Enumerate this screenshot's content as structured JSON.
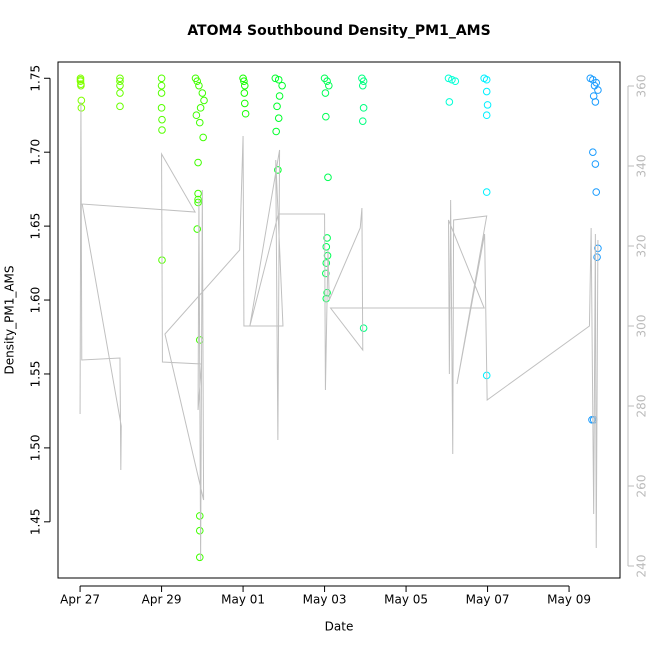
{
  "chart_data": {
    "type": "scatter",
    "title": "ATOM4 Southbound Density_PM1_AMS",
    "xlabel": "Date",
    "ylabel": "Density_PM1_AMS",
    "xlim": [
      "04-26 11:00",
      "05-10 06:00"
    ],
    "xticks": [
      {
        "value": "04-27",
        "label": "Apr 27"
      },
      {
        "value": "04-29",
        "label": "Apr 29"
      },
      {
        "value": "05-01",
        "label": "May 01"
      },
      {
        "value": "05-03",
        "label": "May 03"
      },
      {
        "value": "05-05",
        "label": "May 05"
      },
      {
        "value": "05-07",
        "label": "May 07"
      },
      {
        "value": "05-09",
        "label": "May 09"
      }
    ],
    "ylim": [
      1.412,
      1.761
    ],
    "yticks": [
      1.45,
      {
        "value": 1.5,
        "label": "1.50"
      },
      1.55,
      {
        "value": 1.6,
        "label": "1.60"
      },
      1.65,
      {
        "value": 1.7,
        "label": "1.70"
      },
      1.75
    ],
    "y2lim": [
      237,
      366
    ],
    "y2ticks": [
      240,
      260,
      280,
      300,
      320,
      340,
      360
    ],
    "y2tick_color": "#bbbbbb",
    "grid": false,
    "series": [
      {
        "type": "scatter",
        "x": [
          "04-27 00:15",
          "04-27 00:15",
          "04-27 00:15",
          "04-27 00:30",
          "04-27 00:30",
          "04-27 00:45",
          "04-27 00:45",
          "04-27 23:30",
          "04-27 23:30",
          "04-27 23:30",
          "04-27 23:30",
          "04-27 23:30",
          "04-29 00:00",
          "04-29 00:00",
          "04-29 00:00",
          "04-29 00:00",
          "04-29 00:15",
          "04-29 00:15",
          "04-29 00:15",
          "04-29 20:00",
          "04-29 21:00",
          "04-29 22:00",
          "04-30 00:00",
          "04-30 01:00",
          "04-29 23:00",
          "04-29 20:30",
          "04-29 22:30",
          "04-30 00:30",
          "04-29 21:30",
          "04-29 21:30",
          "04-29 21:30",
          "04-29 21:30",
          "04-29 21:00",
          "04-29 22:30",
          "04-29 22:30",
          "04-29 22:30",
          "04-29 22:30",
          "05-01 00:00",
          "05-01 00:30",
          "05-01 01:00",
          "05-01 00:45",
          "05-01 01:00",
          "05-01 01:30",
          "05-01 19:00",
          "05-01 21:00",
          "05-01 23:00",
          "05-01 21:30",
          "05-01 20:00",
          "05-01 21:00",
          "05-01 19:30",
          "05-01 20:30",
          "05-03 00:00",
          "05-03 01:30",
          "05-03 02:30",
          "05-03 00:30",
          "05-03 00:45",
          "05-03 02:00",
          "05-03 01:30",
          "05-03 01:00",
          "05-03 01:45",
          "05-03 01:00",
          "05-03 00:45",
          "05-03 01:30",
          "05-03 01:00",
          "05-03 22:00",
          "05-03 23:00",
          "05-03 22:30",
          "05-03 23:00",
          "05-03 22:30",
          "05-03 23:00",
          "05-06 01:00",
          "05-06 03:00",
          "05-06 05:00",
          "05-06 01:30",
          "05-06 22:00",
          "05-06 23:30",
          "05-06 23:30",
          "05-07 00:00",
          "05-06 23:30",
          "05-06 23:30",
          "05-06 23:30",
          "05-09 12:30",
          "05-09 14:00",
          "05-09 16:00",
          "05-09 15:00",
          "05-09 17:00",
          "05-09 14:30",
          "05-09 15:30",
          "05-09 14:00",
          "05-09 15:30",
          "05-09 16:00",
          "05-09 17:00",
          "05-09 16:30",
          "05-09 13:30",
          "05-09 14:30"
        ],
        "values": [
          1.75,
          1.749,
          1.748,
          1.746,
          1.745,
          1.735,
          1.73,
          1.75,
          1.748,
          1.745,
          1.74,
          1.731,
          1.75,
          1.745,
          1.74,
          1.73,
          1.722,
          1.715,
          1.627,
          1.75,
          1.748,
          1.745,
          1.74,
          1.735,
          1.73,
          1.725,
          1.72,
          1.71,
          1.693,
          1.672,
          1.668,
          1.666,
          1.648,
          1.573,
          1.454,
          1.444,
          1.426,
          1.75,
          1.748,
          1.745,
          1.74,
          1.733,
          1.726,
          1.75,
          1.749,
          1.745,
          1.738,
          1.731,
          1.723,
          1.714,
          1.688,
          1.75,
          1.748,
          1.745,
          1.74,
          1.724,
          1.683,
          1.642,
          1.636,
          1.63,
          1.625,
          1.618,
          1.605,
          1.601,
          1.75,
          1.748,
          1.745,
          1.73,
          1.721,
          1.581,
          1.75,
          1.749,
          1.748,
          1.734,
          1.75,
          1.749,
          1.741,
          1.732,
          1.725,
          1.673,
          1.549,
          1.75,
          1.749,
          1.747,
          1.745,
          1.742,
          1.738,
          1.734,
          1.7,
          1.692,
          1.673,
          1.635,
          1.629,
          1.519,
          1.519
        ],
        "colors": [
          "#80ff00",
          "#80ff00",
          "#80ff00",
          "#80ff00",
          "#80ff00",
          "#80ff00",
          "#80ff00",
          "#6aff00",
          "#6aff00",
          "#6aff00",
          "#6aff00",
          "#6aff00",
          "#55ff00",
          "#55ff00",
          "#55ff00",
          "#55ff00",
          "#55ff00",
          "#55ff00",
          "#55ff00",
          "#40ff00",
          "#40ff00",
          "#40ff00",
          "#40ff00",
          "#40ff00",
          "#40ff00",
          "#40ff00",
          "#40ff00",
          "#40ff00",
          "#40ff00",
          "#40ff00",
          "#40ff00",
          "#40ff00",
          "#40ff00",
          "#40ff00",
          "#40ff00",
          "#40ff00",
          "#40ff00",
          "#15ff00",
          "#15ff00",
          "#15ff00",
          "#15ff00",
          "#15ff00",
          "#15ff00",
          "#00ff2b",
          "#00ff2b",
          "#00ff2b",
          "#00ff2b",
          "#00ff2b",
          "#00ff2b",
          "#00ff2b",
          "#00ff2b",
          "#00ff55",
          "#00ff55",
          "#00ff55",
          "#00ff55",
          "#00ff55",
          "#00ff55",
          "#00ff55",
          "#00ff55",
          "#00ff55",
          "#00ff55",
          "#00ff55",
          "#00ff55",
          "#00ff55",
          "#00ff80",
          "#00ff80",
          "#00ff80",
          "#00ff80",
          "#00ff80",
          "#00ff80",
          "#00ffd5",
          "#00ffd5",
          "#00ffd5",
          "#00ffd5",
          "#00f0ff",
          "#00f0ff",
          "#00f0ff",
          "#00f0ff",
          "#00f0ff",
          "#00f0ff",
          "#00f0ff",
          "#1a9cff",
          "#1a9cff",
          "#1a9cff",
          "#1a9cff",
          "#1a9cff",
          "#1a9cff",
          "#1a9cff",
          "#1a9cff",
          "#1a9cff",
          "#1a9cff",
          "#1a9cff",
          "#1a9cff",
          "#1a9cff",
          "#1a9cff"
        ]
      },
      {
        "type": "line",
        "axis": "y2",
        "color": "#c0c0c0",
        "x": [
          "04-27 00:00",
          "04-27 00:30",
          "04-27 01:00",
          "04-27 23:30",
          "04-28 00:00",
          "04-28 00:15",
          "04-27 01:15",
          "04-29 19:45",
          "04-29 00:00",
          "04-29 00:30",
          "04-29 23:30",
          "04-29 21:30",
          "04-29 22:00",
          "04-29 23:00",
          "04-30 00:00",
          "04-30 00:45",
          "04-29 02:00",
          "04-30 22:00",
          "05-01 00:00",
          "05-01 00:30",
          "05-01 23:30",
          "05-01 19:15",
          "05-01 20:30",
          "05-01 21:30",
          "05-01 04:00",
          "05-01 20:45",
          "05-03 00:00",
          "05-03 00:30",
          "05-03 02:00",
          "05-03 02:45",
          "05-03 21:00",
          "05-03 22:00",
          "05-03 22:30",
          "05-03 03:30",
          "05-06 22:00",
          "05-06 01:00",
          "05-06 01:30",
          "05-06 02:15",
          "05-06 03:30",
          "05-06 04:00",
          "05-06 23:30",
          "05-06 06:00",
          "05-06 22:15",
          "05-06 23:45",
          "05-09 12:00",
          "05-09 13:00",
          "05-09 14:30",
          "05-09 15:30",
          "05-09 16:00",
          "05-09 17:00"
        ],
        "values": [
          278,
          356,
          291.5,
          292,
          264,
          275,
          330.5,
          328.5,
          343,
          291,
          290.5,
          279,
          331.5,
          241.5,
          334,
          256.5,
          298,
          319,
          347.5,
          300,
          300,
          341.5,
          271.5,
          344,
          300,
          328,
          328,
          284,
          319,
          306.5,
          324.5,
          329.5,
          294,
          304.5,
          304.5,
          326.5,
          288,
          331.5,
          268,
          326.5,
          327.5,
          285.5,
          323,
          281.5,
          300,
          324.5,
          253,
          323,
          244.5,
          321.5
        ]
      }
    ]
  }
}
